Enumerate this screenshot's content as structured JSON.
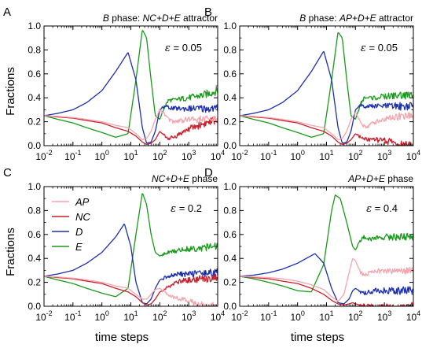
{
  "figure": {
    "ylabel": "Fractions",
    "xlabel": "time steps",
    "legend_entries": [
      "AP",
      "NC",
      "D",
      "E"
    ]
  },
  "colors": {
    "AP": "#f4a6ae",
    "NC": "#cc1f2b",
    "D": "#1c2fb0",
    "E": "#1a9a1a"
  },
  "chart_data": [
    {
      "type": "line",
      "panel_letter": "A",
      "title_italic": "B",
      "title_rest": " phase: ",
      "title_italic2": "NC+D+E",
      "title_rest2": " attractor",
      "epsilon": "ε = 0.05",
      "x_scale": "log",
      "xlim": [
        0.01,
        10000
      ],
      "ylim": [
        0,
        1.0
      ],
      "x_ticks": [
        "10-2",
        "10-1",
        "100",
        "101",
        "102",
        "103",
        "104"
      ],
      "y_ticks": [
        "0.0",
        "0.2",
        "0.4",
        "0.6",
        "0.8",
        "1.0"
      ],
      "legend": false,
      "series": [
        {
          "name": "AP",
          "x": [
            0.01,
            0.03,
            0.1,
            0.3,
            1,
            3,
            8,
            15,
            25,
            35,
            50,
            70,
            100,
            150,
            200,
            300,
            500,
            1000,
            3000,
            10000
          ],
          "y": [
            0.25,
            0.245,
            0.235,
            0.22,
            0.2,
            0.17,
            0.15,
            0.1,
            0.05,
            0.06,
            0.12,
            0.22,
            0.3,
            0.26,
            0.22,
            0.2,
            0.21,
            0.22,
            0.22,
            0.22
          ]
        },
        {
          "name": "NC",
          "x": [
            0.01,
            0.03,
            0.1,
            0.3,
            1,
            3,
            8,
            15,
            25,
            35,
            50,
            70,
            100,
            150,
            200,
            300,
            500,
            1000,
            3000,
            10000
          ],
          "y": [
            0.25,
            0.24,
            0.23,
            0.21,
            0.19,
            0.15,
            0.12,
            0.08,
            0.03,
            0.01,
            0.02,
            0.05,
            0.12,
            0.08,
            0.06,
            0.07,
            0.1,
            0.14,
            0.18,
            0.22
          ]
        },
        {
          "name": "D",
          "x": [
            0.01,
            0.03,
            0.1,
            0.3,
            1,
            3,
            8,
            15,
            25,
            35,
            50,
            70,
            100,
            150,
            200,
            300,
            500,
            1000,
            3000,
            10000
          ],
          "y": [
            0.25,
            0.27,
            0.3,
            0.36,
            0.46,
            0.62,
            0.78,
            0.55,
            0.15,
            0.02,
            0.03,
            0.12,
            0.3,
            0.33,
            0.32,
            0.31,
            0.31,
            0.31,
            0.31,
            0.31
          ]
        },
        {
          "name": "E",
          "x": [
            0.01,
            0.03,
            0.1,
            0.3,
            1,
            3,
            8,
            15,
            25,
            35,
            50,
            70,
            100,
            150,
            200,
            300,
            500,
            1000,
            3000,
            10000
          ],
          "y": [
            0.25,
            0.22,
            0.19,
            0.15,
            0.11,
            0.07,
            0.1,
            0.55,
            0.97,
            0.9,
            0.55,
            0.25,
            0.22,
            0.33,
            0.38,
            0.38,
            0.39,
            0.4,
            0.42,
            0.46
          ]
        }
      ]
    },
    {
      "type": "line",
      "panel_letter": "B",
      "title_italic": "B",
      "title_rest": " phase: ",
      "title_italic2": "AP+D+E",
      "title_rest2": " attractor",
      "epsilon": "ε = 0.05",
      "x_scale": "log",
      "xlim": [
        0.01,
        10000
      ],
      "ylim": [
        0,
        1.0
      ],
      "x_ticks": [
        "10-2",
        "10-1",
        "100",
        "101",
        "102",
        "103",
        "104"
      ],
      "y_ticks": [
        "0.0",
        "0.2",
        "0.4",
        "0.6",
        "0.8",
        "1.0"
      ],
      "legend": false,
      "series": [
        {
          "name": "AP",
          "x": [
            0.01,
            0.03,
            0.1,
            0.3,
            1,
            3,
            8,
            15,
            25,
            35,
            50,
            70,
            100,
            150,
            200,
            300,
            500,
            1000,
            3000,
            10000
          ],
          "y": [
            0.25,
            0.245,
            0.235,
            0.22,
            0.2,
            0.17,
            0.15,
            0.1,
            0.05,
            0.06,
            0.12,
            0.22,
            0.28,
            0.2,
            0.16,
            0.17,
            0.2,
            0.22,
            0.24,
            0.25
          ]
        },
        {
          "name": "NC",
          "x": [
            0.01,
            0.03,
            0.1,
            0.3,
            1,
            3,
            8,
            15,
            25,
            35,
            50,
            70,
            100,
            150,
            200,
            300,
            500,
            1000,
            2000,
            3000,
            10000
          ],
          "y": [
            0.25,
            0.24,
            0.23,
            0.21,
            0.19,
            0.15,
            0.12,
            0.08,
            0.03,
            0.01,
            0.02,
            0.05,
            0.1,
            0.07,
            0.06,
            0.05,
            0.05,
            0.04,
            0.03,
            0.01,
            0.0
          ]
        },
        {
          "name": "D",
          "x": [
            0.01,
            0.03,
            0.1,
            0.3,
            1,
            3,
            8,
            15,
            25,
            35,
            50,
            70,
            100,
            150,
            200,
            300,
            500,
            1000,
            3000,
            10000
          ],
          "y": [
            0.25,
            0.27,
            0.3,
            0.36,
            0.46,
            0.62,
            0.79,
            0.55,
            0.15,
            0.02,
            0.03,
            0.12,
            0.3,
            0.34,
            0.33,
            0.33,
            0.33,
            0.33,
            0.33,
            0.33
          ]
        },
        {
          "name": "E",
          "x": [
            0.01,
            0.03,
            0.1,
            0.3,
            1,
            3,
            8,
            15,
            25,
            35,
            50,
            70,
            100,
            150,
            200,
            300,
            500,
            1000,
            3000,
            10000
          ],
          "y": [
            0.25,
            0.22,
            0.19,
            0.15,
            0.11,
            0.07,
            0.1,
            0.55,
            0.95,
            0.9,
            0.55,
            0.25,
            0.22,
            0.35,
            0.4,
            0.4,
            0.4,
            0.41,
            0.42,
            0.42
          ]
        }
      ]
    },
    {
      "type": "line",
      "panel_letter": "C",
      "title_italic": "",
      "title_rest": "",
      "title_italic2": "NC+D+E",
      "title_rest2": " phase",
      "epsilon": "ε = 0.2",
      "x_scale": "log",
      "xlim": [
        0.01,
        10000
      ],
      "ylim": [
        0,
        1.0
      ],
      "x_ticks": [
        "10-2",
        "10-1",
        "100",
        "101",
        "102",
        "103",
        "104"
      ],
      "y_ticks": [
        "0.0",
        "0.2",
        "0.4",
        "0.6",
        "0.8",
        "1.0"
      ],
      "legend": true,
      "series": [
        {
          "name": "AP",
          "x": [
            0.01,
            0.03,
            0.1,
            0.3,
            1,
            3,
            8,
            15,
            25,
            35,
            50,
            70,
            100,
            150,
            200,
            300,
            500,
            1000,
            2000,
            3000,
            5000,
            10000
          ],
          "y": [
            0.25,
            0.245,
            0.235,
            0.22,
            0.2,
            0.17,
            0.15,
            0.1,
            0.06,
            0.06,
            0.1,
            0.14,
            0.15,
            0.12,
            0.1,
            0.08,
            0.06,
            0.04,
            0.02,
            0.01,
            0.0,
            0.0
          ]
        },
        {
          "name": "NC",
          "x": [
            0.01,
            0.03,
            0.1,
            0.3,
            1,
            3,
            8,
            15,
            25,
            35,
            50,
            70,
            100,
            150,
            200,
            300,
            500,
            1000,
            3000,
            10000
          ],
          "y": [
            0.25,
            0.24,
            0.23,
            0.21,
            0.19,
            0.15,
            0.12,
            0.08,
            0.03,
            0.01,
            0.02,
            0.06,
            0.12,
            0.14,
            0.16,
            0.19,
            0.21,
            0.22,
            0.23,
            0.24
          ]
        },
        {
          "name": "D",
          "x": [
            0.01,
            0.03,
            0.1,
            0.3,
            1,
            3,
            6,
            10,
            15,
            25,
            35,
            50,
            70,
            100,
            150,
            200,
            300,
            500,
            1000,
            3000,
            10000
          ],
          "y": [
            0.25,
            0.27,
            0.3,
            0.36,
            0.45,
            0.58,
            0.69,
            0.5,
            0.2,
            0.03,
            0.02,
            0.06,
            0.15,
            0.22,
            0.24,
            0.25,
            0.26,
            0.27,
            0.27,
            0.28,
            0.28
          ]
        },
        {
          "name": "E",
          "x": [
            0.01,
            0.03,
            0.1,
            0.3,
            1,
            3,
            8,
            15,
            25,
            35,
            50,
            70,
            100,
            150,
            200,
            300,
            500,
            1000,
            3000,
            10000
          ],
          "y": [
            0.25,
            0.22,
            0.19,
            0.15,
            0.11,
            0.08,
            0.15,
            0.6,
            0.95,
            0.85,
            0.6,
            0.45,
            0.42,
            0.44,
            0.45,
            0.46,
            0.47,
            0.48,
            0.49,
            0.5
          ]
        }
      ]
    },
    {
      "type": "line",
      "panel_letter": "D",
      "title_italic": "",
      "title_rest": "",
      "title_italic2": "AP+D+E",
      "title_rest2": " phase",
      "epsilon": "ε = 0.4",
      "x_scale": "log",
      "xlim": [
        0.01,
        10000
      ],
      "ylim": [
        0,
        1.0
      ],
      "x_ticks": [
        "10-2",
        "10-1",
        "100",
        "101",
        "102",
        "103",
        "104"
      ],
      "y_ticks": [
        "0.0",
        "0.2",
        "0.4",
        "0.6",
        "0.8",
        "1.0"
      ],
      "legend": false,
      "series": [
        {
          "name": "AP",
          "x": [
            0.01,
            0.03,
            0.1,
            0.3,
            1,
            3,
            8,
            15,
            25,
            40,
            60,
            80,
            100,
            150,
            200,
            300,
            500,
            1000,
            3000,
            10000
          ],
          "y": [
            0.25,
            0.245,
            0.24,
            0.23,
            0.21,
            0.18,
            0.14,
            0.08,
            0.04,
            0.1,
            0.28,
            0.4,
            0.38,
            0.28,
            0.26,
            0.28,
            0.3,
            0.29,
            0.3,
            0.3
          ]
        },
        {
          "name": "NC",
          "x": [
            0.01,
            0.03,
            0.1,
            0.3,
            1,
            3,
            8,
            15,
            25,
            40,
            60,
            80,
            100,
            150,
            200,
            300,
            500,
            1000,
            3000,
            10000
          ],
          "y": [
            0.25,
            0.24,
            0.23,
            0.21,
            0.19,
            0.15,
            0.1,
            0.05,
            0.02,
            0.01,
            0.02,
            0.03,
            0.02,
            0.01,
            0.005,
            0.0,
            0.0,
            0.0,
            0.0,
            0.0
          ]
        },
        {
          "name": "D",
          "x": [
            0.01,
            0.03,
            0.1,
            0.3,
            1,
            2,
            4,
            8,
            15,
            25,
            40,
            60,
            80,
            100,
            150,
            200,
            300,
            500,
            1000,
            3000,
            10000
          ],
          "y": [
            0.25,
            0.26,
            0.28,
            0.31,
            0.36,
            0.4,
            0.44,
            0.36,
            0.15,
            0.03,
            0.02,
            0.06,
            0.13,
            0.15,
            0.12,
            0.11,
            0.12,
            0.13,
            0.13,
            0.13,
            0.13
          ]
        },
        {
          "name": "E",
          "x": [
            0.01,
            0.03,
            0.1,
            0.3,
            1,
            3,
            8,
            15,
            20,
            30,
            50,
            80,
            100,
            150,
            200,
            300,
            500,
            1000,
            3000,
            10000
          ],
          "y": [
            0.25,
            0.23,
            0.2,
            0.17,
            0.13,
            0.12,
            0.35,
            0.8,
            0.93,
            0.9,
            0.7,
            0.5,
            0.47,
            0.55,
            0.58,
            0.56,
            0.57,
            0.58,
            0.58,
            0.58
          ]
        }
      ]
    }
  ]
}
